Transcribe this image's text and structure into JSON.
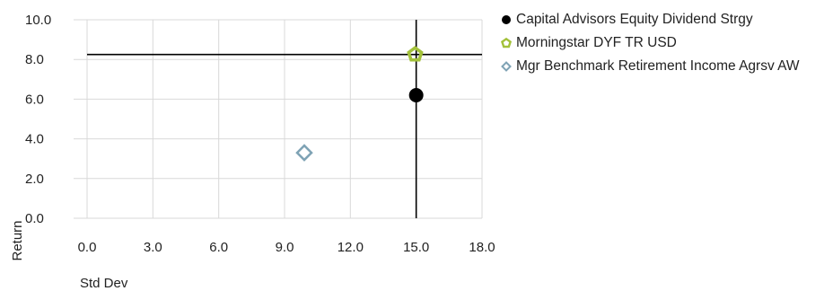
{
  "chart_data": {
    "type": "scatter",
    "title": "",
    "xlabel": "Std Dev",
    "ylabel": "Return",
    "xlim": [
      0,
      18
    ],
    "ylim": [
      0,
      10
    ],
    "x_ticks": [
      "0.0",
      "3.0",
      "6.0",
      "9.0",
      "12.0",
      "15.0",
      "18.0"
    ],
    "y_ticks": [
      "0.0",
      "2.0",
      "4.0",
      "6.0",
      "8.0",
      "10.0"
    ],
    "grid": true,
    "legend_position": "right",
    "reference_lines": {
      "x": 15.0,
      "y": 8.25
    },
    "series": [
      {
        "name": "Capital Advisors Equity Dividend Strgy",
        "x": 15.0,
        "y": 6.2,
        "marker": "circle",
        "color": "#000000"
      },
      {
        "name": "Morningstar DYF TR USD",
        "x": 14.95,
        "y": 8.25,
        "marker": "pentagon",
        "color": "#a3c13a"
      },
      {
        "name": "Mgr Benchmark Retirement Income Agrsv AW",
        "x": 9.9,
        "y": 3.3,
        "marker": "diamond",
        "color": "#7fa3b5"
      }
    ]
  }
}
